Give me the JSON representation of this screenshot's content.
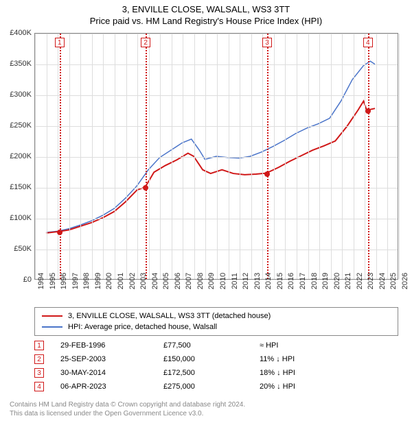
{
  "title": "3, ENVILLE CLOSE, WALSALL, WS3 3TT",
  "subtitle": "Price paid vs. HM Land Registry's House Price Index (HPI)",
  "chart": {
    "type": "line",
    "background_color": "#ffffff",
    "grid_color": "#dddddd",
    "border_color": "#888888",
    "x_axis": {
      "min": 1994,
      "max": 2026,
      "tick_step": 1
    },
    "y_axis": {
      "min": 0,
      "max": 400000,
      "tick_step": 50000,
      "tick_labels": [
        "£0",
        "£50K",
        "£100K",
        "£150K",
        "£200K",
        "£250K",
        "£300K",
        "£350K",
        "£400K"
      ]
    },
    "series": [
      {
        "name": "property",
        "label": "3, ENVILLE CLOSE, WALSALL, WS3 3TT (detached house)",
        "color": "#d01818",
        "line_width": 2,
        "data": [
          [
            1995.0,
            75000
          ],
          [
            1996.16,
            77500
          ],
          [
            1997.0,
            80000
          ],
          [
            1998.0,
            86000
          ],
          [
            1999.0,
            92000
          ],
          [
            2000.0,
            100000
          ],
          [
            2001.0,
            110000
          ],
          [
            2002.0,
            126000
          ],
          [
            2003.0,
            145000
          ],
          [
            2003.73,
            150000
          ],
          [
            2004.5,
            174000
          ],
          [
            2005.5,
            185000
          ],
          [
            2006.5,
            194000
          ],
          [
            2007.5,
            205000
          ],
          [
            2008.0,
            200000
          ],
          [
            2008.8,
            178000
          ],
          [
            2009.5,
            172000
          ],
          [
            2010.5,
            178000
          ],
          [
            2011.5,
            172000
          ],
          [
            2012.5,
            170000
          ],
          [
            2013.5,
            171000
          ],
          [
            2014.41,
            172500
          ],
          [
            2015.5,
            182000
          ],
          [
            2016.5,
            192000
          ],
          [
            2017.5,
            201000
          ],
          [
            2018.5,
            210000
          ],
          [
            2019.5,
            217000
          ],
          [
            2020.5,
            225000
          ],
          [
            2021.5,
            248000
          ],
          [
            2022.5,
            275000
          ],
          [
            2023.0,
            290000
          ],
          [
            2023.27,
            275000
          ],
          [
            2024.0,
            278000
          ]
        ]
      },
      {
        "name": "hpi",
        "label": "HPI: Average price, detached house, Walsall",
        "color": "#4a74c9",
        "line_width": 1.5,
        "data": [
          [
            1995.0,
            76000
          ],
          [
            1996.0,
            78000
          ],
          [
            1997.0,
            82000
          ],
          [
            1998.0,
            88000
          ],
          [
            1999.0,
            95000
          ],
          [
            2000.0,
            104000
          ],
          [
            2001.0,
            115000
          ],
          [
            2002.0,
            132000
          ],
          [
            2003.0,
            152000
          ],
          [
            2004.0,
            178000
          ],
          [
            2005.0,
            198000
          ],
          [
            2006.0,
            210000
          ],
          [
            2007.0,
            222000
          ],
          [
            2007.8,
            228000
          ],
          [
            2008.5,
            210000
          ],
          [
            2009.0,
            195000
          ],
          [
            2010.0,
            200000
          ],
          [
            2011.0,
            198000
          ],
          [
            2012.0,
            197000
          ],
          [
            2013.0,
            200000
          ],
          [
            2014.0,
            207000
          ],
          [
            2015.0,
            216000
          ],
          [
            2016.0,
            226000
          ],
          [
            2017.0,
            237000
          ],
          [
            2018.0,
            246000
          ],
          [
            2019.0,
            253000
          ],
          [
            2020.0,
            262000
          ],
          [
            2021.0,
            290000
          ],
          [
            2022.0,
            325000
          ],
          [
            2023.0,
            348000
          ],
          [
            2023.6,
            355000
          ],
          [
            2024.0,
            350000
          ]
        ]
      }
    ],
    "sale_markers": [
      {
        "n": "1",
        "year": 1996.16,
        "price": 77500
      },
      {
        "n": "2",
        "year": 2003.73,
        "price": 150000
      },
      {
        "n": "3",
        "year": 2014.41,
        "price": 172500
      },
      {
        "n": "4",
        "year": 2023.27,
        "price": 275000
      }
    ],
    "sale_line_color": "#d01818"
  },
  "legend": {
    "items": [
      {
        "color": "#d01818",
        "label": "3, ENVILLE CLOSE, WALSALL, WS3 3TT (detached house)"
      },
      {
        "color": "#4a74c9",
        "label": "HPI: Average price, detached house, Walsall"
      }
    ]
  },
  "sales_table": [
    {
      "n": "1",
      "date": "29-FEB-1996",
      "price": "£77,500",
      "delta": "≈ HPI"
    },
    {
      "n": "2",
      "date": "25-SEP-2003",
      "price": "£150,000",
      "delta": "11% ↓ HPI"
    },
    {
      "n": "3",
      "date": "30-MAY-2014",
      "price": "£172,500",
      "delta": "18% ↓ HPI"
    },
    {
      "n": "4",
      "date": "06-APR-2023",
      "price": "£275,000",
      "delta": "20% ↓ HPI"
    }
  ],
  "footer": {
    "line1": "Contains HM Land Registry data © Crown copyright and database right 2024.",
    "line2": "This data is licensed under the Open Government Licence v3.0."
  }
}
